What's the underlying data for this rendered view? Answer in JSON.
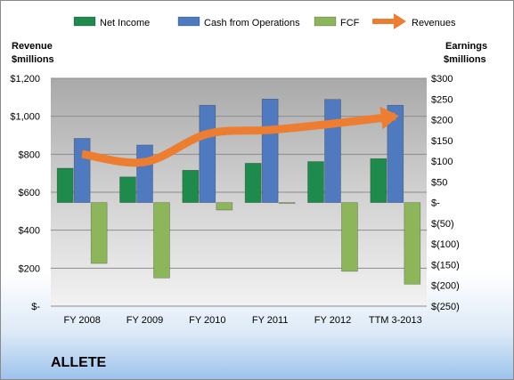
{
  "company": "ALLETE",
  "chart_data": {
    "type": "bar",
    "categories": [
      "FY 2008",
      "FY 2009",
      "FY 2010",
      "FY 2011",
      "FY 2012",
      "TTM 3-2013"
    ],
    "series": [
      {
        "name": "Net Income",
        "kind": "bar",
        "axis": "right",
        "color": "#1e8b4c",
        "values": [
          83,
          62,
          78,
          95,
          99,
          106
        ]
      },
      {
        "name": "Cash from Operations",
        "kind": "bar",
        "axis": "right",
        "color": "#4f7ac0",
        "values": [
          155,
          139,
          235,
          250,
          249,
          235
        ]
      },
      {
        "name": "FCF",
        "kind": "bar",
        "axis": "right",
        "color": "#8db55a",
        "values": [
          -147,
          -182,
          -18,
          -2,
          -166,
          -197
        ]
      },
      {
        "name": "Revenues",
        "kind": "line",
        "axis": "left",
        "color": "#ed7d31",
        "values": [
          801,
          759,
          907,
          928,
          961,
          1000
        ]
      }
    ],
    "left_axis": {
      "label": "Revenue $millions",
      "min": 0,
      "max": 1200,
      "step": 200,
      "ticks": [
        "$-",
        "$200",
        "$400",
        "$600",
        "$800",
        "$1,000",
        "$1,200"
      ]
    },
    "right_axis": {
      "label": "Earnings $millions",
      "min": -250,
      "max": 300,
      "step": 50,
      "ticks": [
        "$(250)",
        "$(200)",
        "$(150)",
        "$(100)",
        "$(50)",
        "$-",
        "$50",
        "$100",
        "$150",
        "$200",
        "$250",
        "$300"
      ]
    },
    "legend_position": "top",
    "grid": true,
    "plot_background": "#bdbdbd"
  }
}
